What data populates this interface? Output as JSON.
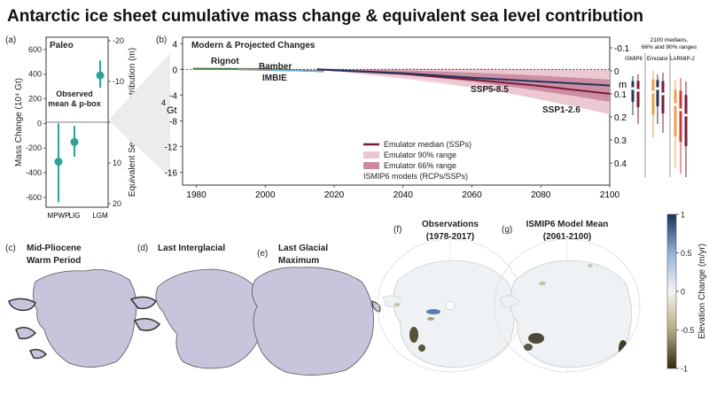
{
  "title": "Antarctic ice sheet cumulative mass change & equivalent sea level contribution",
  "colors": {
    "teal": "#2aa39a",
    "dark_red": "#7a1b3a",
    "navy": "#23365e",
    "green": "#3c7a3c",
    "red": "#d03a3a",
    "light_blue": "#66b3d6",
    "fill_90": "#ebc6d0",
    "fill_66": "#c98b9f",
    "ice": "#c8c4dc"
  },
  "chart_data": [
    {
      "panel": "a",
      "panel_label": "(a)",
      "type": "scatter",
      "inner_title": "Paleo",
      "annotation": [
        "Observed",
        "mean & p-box"
      ],
      "ylabel": "Mass Change (10⁴ Gt)",
      "y2label": "Equivalent Sea Level Contribution (m)",
      "ylim": [
        -680,
        700
      ],
      "yticks": [
        -600,
        -400,
        -200,
        0,
        200,
        400,
        600
      ],
      "y2ticks": [
        "-20",
        "-10",
        "0",
        "10",
        "20"
      ],
      "categories": [
        "MPWP",
        "LIG",
        "LGM"
      ],
      "values": [
        -310,
        -150,
        390
      ],
      "ranges": [
        [
          -640,
          0
        ],
        [
          -270,
          -20
        ],
        [
          290,
          510
        ]
      ]
    },
    {
      "panel": "b",
      "panel_label": "(b)",
      "type": "area",
      "inner_title": "Modern & Projected Changes",
      "ylabel": "Gt",
      "ylabel_prefix": "4",
      "y2label": "m",
      "xlim": [
        1976,
        2100
      ],
      "ylim": [
        -18,
        5
      ],
      "xticks": [
        1980,
        2000,
        2020,
        2040,
        2060,
        2080,
        2100
      ],
      "yticks": [
        4,
        0,
        -4,
        -8,
        -12,
        -16
      ],
      "y2ticks": [
        "-0.1",
        "0",
        "0.1",
        "0.2",
        "0.3",
        "0.4"
      ],
      "observations": [
        "Rignot",
        "Bamber",
        "IMBIE"
      ],
      "series": [
        {
          "name": "SSP5-8.5",
          "x": [
            2015,
            2040,
            2060,
            2080,
            2100
          ],
          "values": [
            0,
            -0.7,
            -1.6,
            -2.6,
            -3.8
          ]
        },
        {
          "name": "SSP1-2.6",
          "x": [
            2015,
            2040,
            2060,
            2080,
            2100
          ],
          "values": [
            0,
            -0.6,
            -1.3,
            -1.9,
            -2.5
          ]
        }
      ],
      "legend": [
        "Emulator median (SSPs)",
        "Emulator 90% range",
        "Emulator 66% range",
        "ISMIP6 models (RCPs/SSPs)"
      ],
      "right_caption": [
        "2100 medians,",
        "66% and 90% ranges"
      ],
      "right_groups": [
        "ISMIP6",
        "Emulator",
        "LARMIP-2"
      ]
    },
    {
      "panel": "f",
      "panel_label": "(f)",
      "type": "heatmap",
      "title_lines": [
        "Observations",
        "(1978-2017)"
      ]
    },
    {
      "panel": "g",
      "panel_label": "(g)",
      "type": "heatmap",
      "title_lines": [
        "ISMIP6 Model Mean",
        "(2061-2100)"
      ],
      "colorbar_label": "Elevation Change (m/yr)",
      "colorbar_ticks": [
        "1",
        "0.5",
        "0",
        "-0.5",
        "-1"
      ]
    }
  ],
  "maps": [
    {
      "panel_label": "(c)",
      "title_lines": [
        "Mid-Pliocene",
        "Warm Period"
      ]
    },
    {
      "panel_label": "(d)",
      "title_lines": [
        "Last Interglacial"
      ]
    },
    {
      "panel_label": "(e)",
      "title_lines": [
        "Last Glacial",
        "Maximum"
      ]
    }
  ]
}
